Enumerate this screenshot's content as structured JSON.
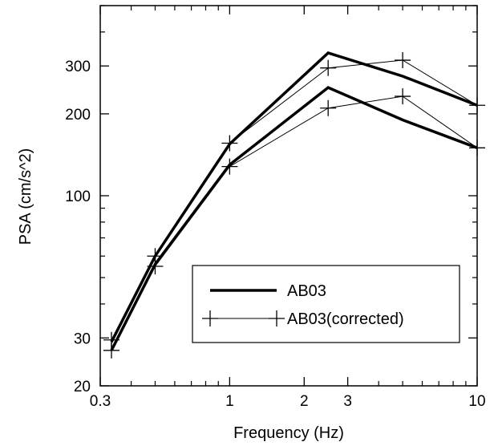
{
  "chart_data": {
    "type": "line",
    "title": "",
    "xlabel": "Frequency (Hz)",
    "ylabel": "PSA (cm/s^2)",
    "xscale": "log",
    "yscale": "log",
    "xlim": [
      0.3,
      10
    ],
    "ylim": [
      20,
      500
    ],
    "grid": false,
    "legend_position": "bottom-right",
    "x_ticks": [
      {
        "value": 0.3,
        "label": "0.3"
      },
      {
        "value": 1,
        "label": "1"
      },
      {
        "value": 2,
        "label": "2"
      },
      {
        "value": 3,
        "label": "3"
      },
      {
        "value": 10,
        "label": "10"
      }
    ],
    "y_ticks": [
      {
        "value": 20,
        "label": "20"
      },
      {
        "value": 30,
        "label": "30"
      },
      {
        "value": 100,
        "label": "100"
      },
      {
        "value": 200,
        "label": "200"
      },
      {
        "value": 300,
        "label": "300"
      }
    ],
    "series": [
      {
        "name": "AB03",
        "style": "thick",
        "color": "#000000",
        "x": [
          0.333,
          0.5,
          1,
          2.5,
          5,
          10
        ],
        "y": [
          29,
          60,
          155,
          335,
          275,
          215
        ]
      },
      {
        "name": "",
        "style": "thick",
        "color": "#000000",
        "x": [
          0.333,
          0.5,
          1,
          2.5,
          5,
          10
        ],
        "y": [
          27,
          56,
          130,
          250,
          190,
          150
        ]
      },
      {
        "name": "AB03(corrected)",
        "style": "thin-cross",
        "color": "#000000",
        "x": [
          0.333,
          0.5,
          1,
          2.5,
          5,
          10
        ],
        "y": [
          29.5,
          60,
          156,
          295,
          315,
          215
        ]
      },
      {
        "name": "",
        "style": "thin-cross",
        "color": "#000000",
        "x": [
          0.333,
          0.5,
          1,
          2.5,
          5,
          10
        ],
        "y": [
          27,
          55,
          128,
          210,
          232,
          150
        ]
      }
    ]
  }
}
